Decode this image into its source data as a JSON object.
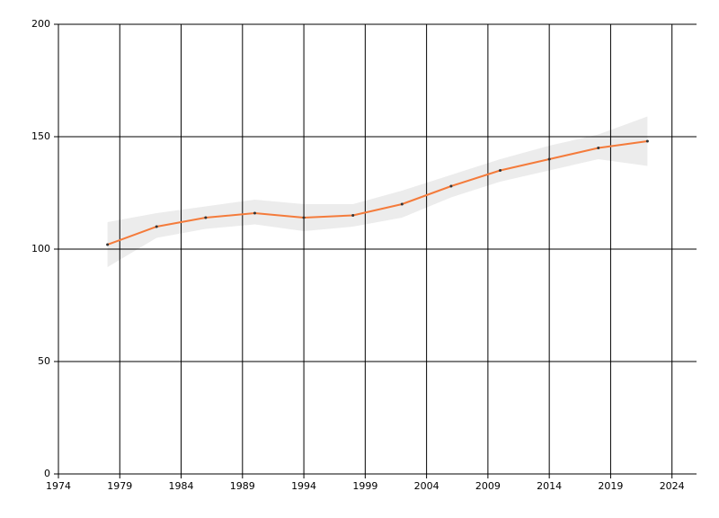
{
  "chart_data": {
    "type": "line",
    "x": [
      1978,
      1982,
      1986,
      1990,
      1994,
      1998,
      2002,
      2006,
      2010,
      2014,
      2018,
      2022
    ],
    "series": [
      {
        "color": "#f47b3b",
        "values": [
          102,
          110,
          114,
          116,
          114,
          115,
          120,
          128,
          135,
          140,
          145,
          148
        ]
      }
    ],
    "band": {
      "color": "#ececec",
      "upper": [
        112,
        116,
        119,
        122,
        120,
        120,
        126,
        133,
        140,
        146,
        151,
        159
      ],
      "lower": [
        92,
        105,
        109,
        111,
        108,
        110,
        114,
        123,
        130,
        135,
        140,
        137
      ]
    },
    "xlim": [
      1974,
      2026
    ],
    "xticks": [
      1974,
      1979,
      1984,
      1989,
      1994,
      1999,
      2004,
      2009,
      2014,
      2019,
      2024
    ],
    "ylim": [
      0,
      200
    ],
    "yticks": [
      0,
      50,
      100,
      150,
      200
    ],
    "grid": true
  }
}
